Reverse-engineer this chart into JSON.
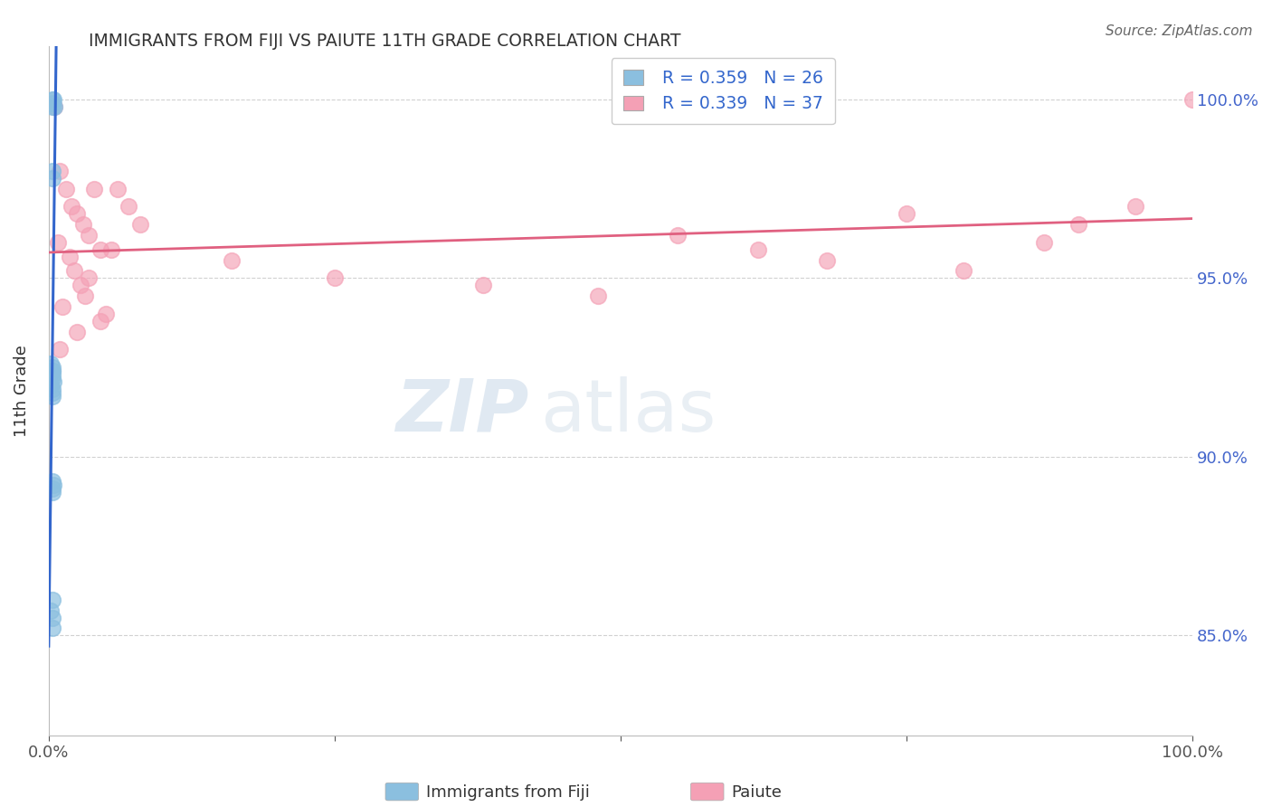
{
  "title": "IMMIGRANTS FROM FIJI VS PAIUTE 11TH GRADE CORRELATION CHART",
  "source": "Source: ZipAtlas.com",
  "ylabel": "11th Grade",
  "ytick_labels": [
    "85.0%",
    "90.0%",
    "95.0%",
    "100.0%"
  ],
  "ytick_values": [
    0.85,
    0.9,
    0.95,
    1.0
  ],
  "xlim": [
    0.0,
    1.0
  ],
  "ylim": [
    0.822,
    1.015
  ],
  "legend_r1": "R = 0.359",
  "legend_n1": "N = 26",
  "legend_r2": "R = 0.339",
  "legend_n2": "N = 37",
  "fiji_color": "#8bbfdf",
  "paiute_color": "#f4a0b5",
  "fiji_line_color": "#3366cc",
  "paiute_line_color": "#e06080",
  "fiji_x": [
    0.003,
    0.004,
    0.003,
    0.003,
    0.005,
    0.003,
    0.003,
    0.002,
    0.003,
    0.003,
    0.003,
    0.003,
    0.003,
    0.004,
    0.002,
    0.003,
    0.003,
    0.003,
    0.003,
    0.004,
    0.003,
    0.003,
    0.003,
    0.002,
    0.003,
    0.003
  ],
  "fiji_y": [
    1.0,
    1.0,
    0.999,
    0.998,
    0.998,
    0.98,
    0.978,
    0.926,
    0.925,
    0.924,
    0.924,
    0.923,
    0.922,
    0.921,
    0.92,
    0.919,
    0.918,
    0.917,
    0.893,
    0.892,
    0.891,
    0.89,
    0.86,
    0.857,
    0.855,
    0.852
  ],
  "paiute_x": [
    0.005,
    0.01,
    0.015,
    0.02,
    0.025,
    0.03,
    0.035,
    0.04,
    0.045,
    0.008,
    0.018,
    0.022,
    0.028,
    0.032,
    0.012,
    0.05,
    0.055,
    0.06,
    0.07,
    0.08,
    0.045,
    0.025,
    0.035,
    0.01,
    0.16,
    0.25,
    0.38,
    0.48,
    0.55,
    0.62,
    0.68,
    0.75,
    0.8,
    0.87,
    0.9,
    0.95,
    1.0
  ],
  "paiute_y": [
    0.998,
    0.98,
    0.975,
    0.97,
    0.968,
    0.965,
    0.962,
    0.975,
    0.958,
    0.96,
    0.956,
    0.952,
    0.948,
    0.945,
    0.942,
    0.94,
    0.958,
    0.975,
    0.97,
    0.965,
    0.938,
    0.935,
    0.95,
    0.93,
    0.955,
    0.95,
    0.948,
    0.945,
    0.962,
    0.958,
    0.955,
    0.968,
    0.952,
    0.96,
    0.965,
    0.97,
    1.0
  ],
  "watermark_zip": "ZIP",
  "watermark_atlas": "atlas",
  "background_color": "#ffffff",
  "grid_color": "#cccccc"
}
